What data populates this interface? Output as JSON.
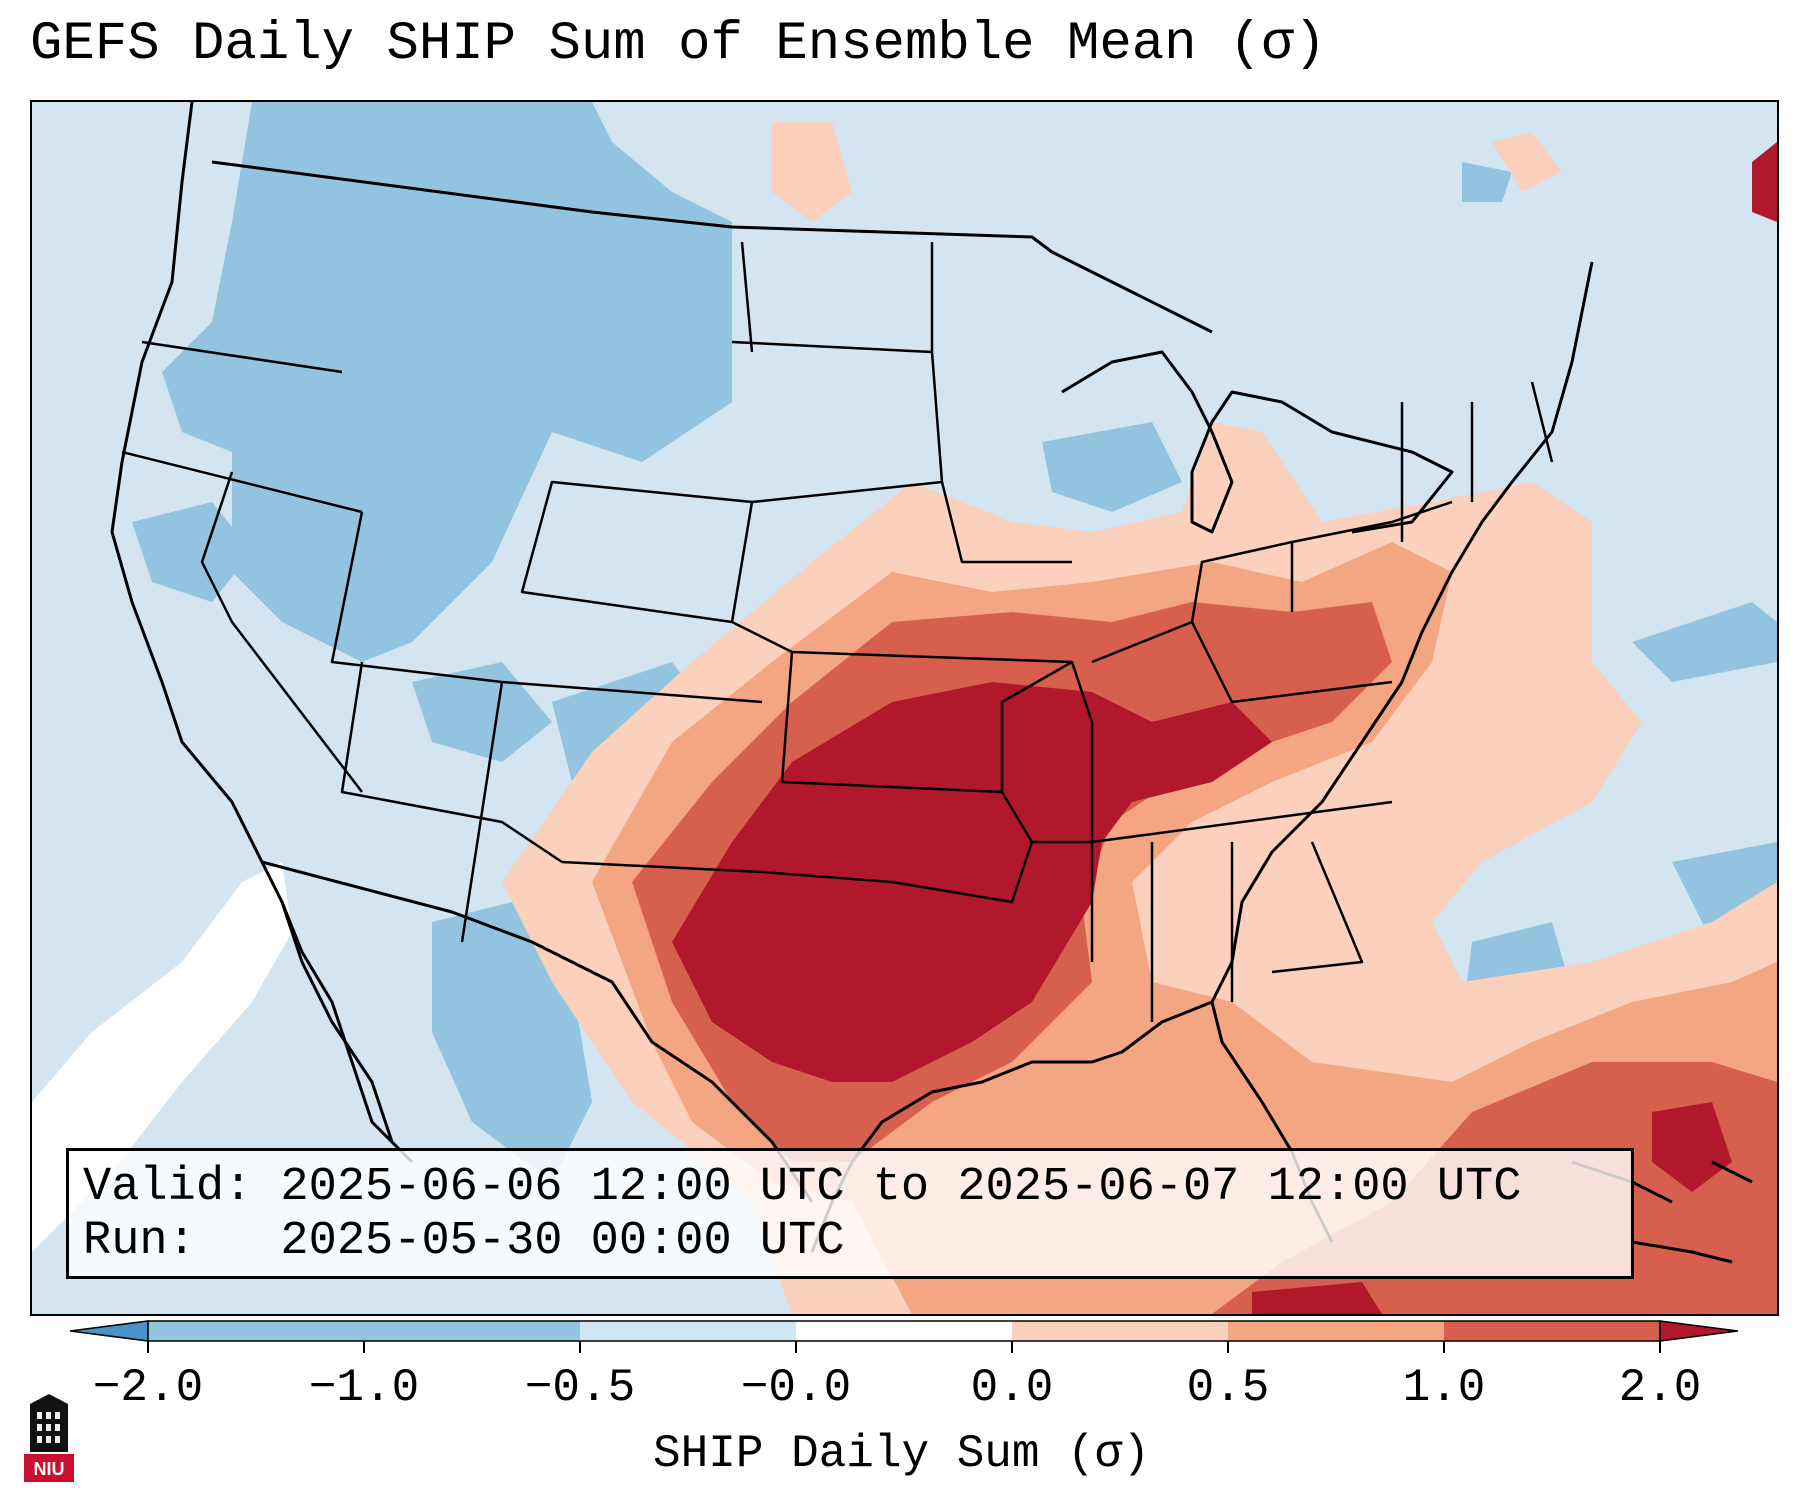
{
  "title": "GEFS Daily SHIP Sum of Ensemble Mean (σ)",
  "info": {
    "valid_line": "Valid: 2025-06-06 12:00 UTC to 2025-06-07 12:00 UTC",
    "run_line": "Run:   2025-05-30 00:00 UTC"
  },
  "colorbar": {
    "label": "SHIP Daily Sum (σ)",
    "ticks": [
      "−2.0",
      "−1.0",
      "−0.5",
      "−0.0",
      "0.0",
      "0.5",
      "1.0",
      "2.0"
    ],
    "bins": [
      {
        "color": "#4a93c8",
        "range": "< -2.0"
      },
      {
        "color": "#92c3df",
        "range": "-2.0 to -1.0"
      },
      {
        "color": "#92c3df",
        "range": "-1.0 to -0.5"
      },
      {
        "color": "#d3e5f0",
        "range": "-0.5 to -0.0"
      },
      {
        "color": "#ffffff",
        "range": "-0.0 to 0.0"
      },
      {
        "color": "#fbd0bc",
        "range": "0.0 to 0.5"
      },
      {
        "color": "#f4a683",
        "range": "0.5 to 1.0"
      },
      {
        "color": "#d6604d",
        "range": "1.0 to 2.0"
      },
      {
        "color": "#b2182b",
        "range": "> 2.0"
      }
    ]
  },
  "regions": {
    "strong_positive": "Southern Plains (OK, N TX, KS, AR, MO)",
    "moderate_positive": "Ohio Valley, Gulf of Mexico, W Atlantic",
    "negative": "Northwest and Northern Rockies"
  },
  "logo": {
    "text": "NIU"
  }
}
